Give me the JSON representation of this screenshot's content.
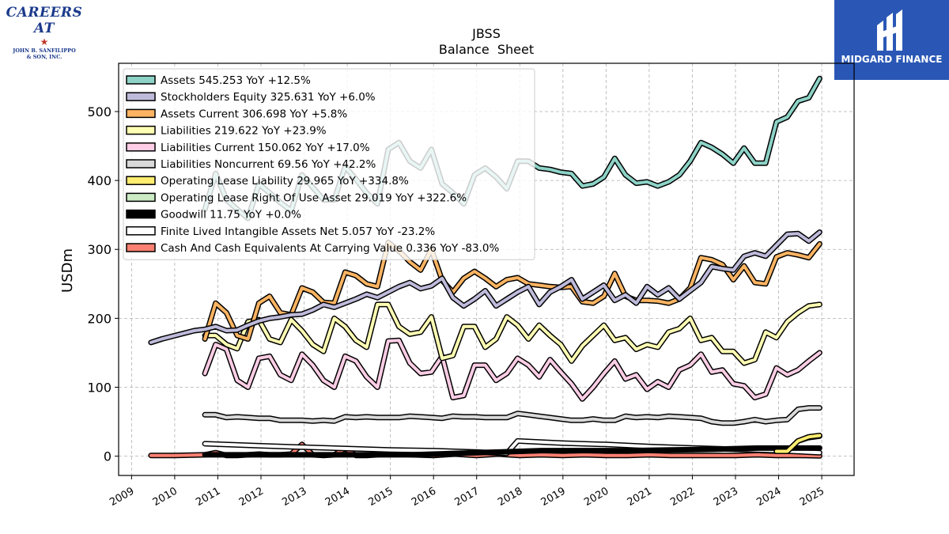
{
  "logos": {
    "careers_title": "CAREERS AT",
    "careers_line1": "JOHN B. SANFILIPPO",
    "careers_line2": "& SON, INC.",
    "midgard_name": "MIDGARD FINANCE"
  },
  "chart_data": {
    "type": "line",
    "title": "JBSS",
    "subtitle": "Balance  Sheet",
    "ylabel": "USDm",
    "xlabel": "",
    "ylim": [
      -28,
      570
    ],
    "xlim": [
      2008.7,
      2025.75
    ],
    "yticks": [
      0,
      100,
      200,
      300,
      400,
      500
    ],
    "xticks": [
      2009,
      2010,
      2011,
      2012,
      2013,
      2014,
      2015,
      2016,
      2017,
      2018,
      2019,
      2020,
      2021,
      2022,
      2023,
      2024,
      2025
    ],
    "grid": true,
    "legend_placement": "top-left",
    "series": [
      {
        "name": "Assets",
        "legend": "Assets  545.253 YoY +12.5%",
        "color": "#8dd3c7",
        "x": [
          2010.7,
          2010.95,
          2011.2,
          2011.45,
          2011.7,
          2011.95,
          2012.2,
          2012.45,
          2012.7,
          2012.95,
          2013.2,
          2013.45,
          2013.7,
          2013.95,
          2014.2,
          2014.45,
          2014.7,
          2014.95,
          2015.2,
          2015.45,
          2015.7,
          2015.95,
          2016.2,
          2016.45,
          2016.7,
          2016.95,
          2017.2,
          2017.45,
          2017.7,
          2017.95,
          2018.2,
          2018.45,
          2018.7,
          2018.95,
          2019.2,
          2019.45,
          2019.7,
          2019.95,
          2020.2,
          2020.45,
          2020.7,
          2020.95,
          2021.2,
          2021.45,
          2021.7,
          2021.95,
          2022.2,
          2022.45,
          2022.7,
          2022.95,
          2023.2,
          2023.45,
          2023.7,
          2023.95,
          2024.2,
          2024.45,
          2024.7,
          2024.95
        ],
        "y": [
          358,
          410,
          372,
          358,
          345,
          395,
          382,
          368,
          356,
          408,
          390,
          372,
          372,
          420,
          402,
          382,
          366,
          445,
          455,
          428,
          418,
          445,
          395,
          382,
          366,
          408,
          418,
          405,
          388,
          428,
          428,
          418,
          416,
          412,
          410,
          392,
          395,
          405,
          432,
          408,
          396,
          398,
          392,
          398,
          408,
          428,
          455,
          448,
          438,
          425,
          447,
          425,
          425,
          485,
          492,
          515,
          520,
          548
        ]
      },
      {
        "name": "Stockholders Equity",
        "legend": "Stockholders Equity  325.631 YoY +6.0%",
        "color": "#bebada",
        "x": [
          2009.45,
          2009.7,
          2009.95,
          2010.2,
          2010.45,
          2010.7,
          2010.95,
          2011.2,
          2011.45,
          2011.7,
          2011.95,
          2012.2,
          2012.45,
          2012.7,
          2012.95,
          2013.2,
          2013.45,
          2013.7,
          2013.95,
          2014.2,
          2014.45,
          2014.7,
          2014.95,
          2015.2,
          2015.45,
          2015.7,
          2015.95,
          2016.2,
          2016.45,
          2016.7,
          2016.95,
          2017.2,
          2017.45,
          2017.7,
          2017.95,
          2018.2,
          2018.45,
          2018.7,
          2018.95,
          2019.2,
          2019.45,
          2019.7,
          2019.95,
          2020.2,
          2020.45,
          2020.7,
          2020.95,
          2021.2,
          2021.45,
          2021.7,
          2021.95,
          2022.2,
          2022.45,
          2022.7,
          2022.95,
          2023.2,
          2023.45,
          2023.7,
          2023.95,
          2024.2,
          2024.45,
          2024.7,
          2024.95
        ],
        "y": [
          165,
          170,
          174,
          178,
          182,
          184,
          188,
          182,
          183,
          190,
          196,
          200,
          202,
          205,
          206,
          212,
          220,
          216,
          222,
          228,
          235,
          230,
          238,
          246,
          252,
          243,
          247,
          258,
          230,
          218,
          228,
          240,
          218,
          228,
          238,
          246,
          220,
          238,
          246,
          256,
          228,
          238,
          248,
          226,
          234,
          222,
          246,
          234,
          244,
          228,
          240,
          252,
          275,
          272,
          270,
          290,
          295,
          290,
          306,
          322,
          323,
          312,
          325
        ]
      },
      {
        "name": "Assets Current",
        "legend": "Assets Current  306.698 YoY +5.8%",
        "color": "#fdb462",
        "x": [
          2010.7,
          2010.95,
          2011.2,
          2011.45,
          2011.7,
          2011.95,
          2012.2,
          2012.45,
          2012.7,
          2012.95,
          2013.2,
          2013.45,
          2013.7,
          2013.95,
          2014.2,
          2014.45,
          2014.7,
          2014.95,
          2015.2,
          2015.45,
          2015.7,
          2015.95,
          2016.2,
          2016.45,
          2016.7,
          2016.95,
          2017.2,
          2017.45,
          2017.7,
          2017.95,
          2018.2,
          2018.45,
          2018.7,
          2018.95,
          2019.2,
          2019.45,
          2019.7,
          2019.95,
          2020.2,
          2020.45,
          2020.7,
          2020.95,
          2021.2,
          2021.45,
          2021.7,
          2021.95,
          2022.2,
          2022.45,
          2022.7,
          2022.95,
          2023.2,
          2023.45,
          2023.7,
          2023.95,
          2024.2,
          2024.45,
          2024.7,
          2024.95
        ],
        "y": [
          170,
          222,
          208,
          175,
          170,
          222,
          232,
          208,
          205,
          244,
          238,
          223,
          222,
          267,
          262,
          250,
          246,
          310,
          298,
          282,
          270,
          300,
          255,
          238,
          258,
          268,
          258,
          246,
          256,
          259,
          250,
          248,
          246,
          245,
          246,
          224,
          222,
          232,
          265,
          232,
          226,
          226,
          225,
          222,
          228,
          244,
          288,
          285,
          278,
          256,
          276,
          252,
          250,
          289,
          295,
          292,
          288,
          308
        ]
      },
      {
        "name": "Liabilities",
        "legend": "Liabilities  219.622 YoY +23.9%",
        "color": "#ffffb3",
        "x": [
          2010.7,
          2010.95,
          2011.2,
          2011.45,
          2011.7,
          2011.95,
          2012.2,
          2012.45,
          2012.7,
          2012.95,
          2013.2,
          2013.45,
          2013.7,
          2013.95,
          2014.2,
          2014.45,
          2014.7,
          2014.95,
          2015.2,
          2015.45,
          2015.7,
          2015.95,
          2016.2,
          2016.45,
          2016.7,
          2016.95,
          2017.2,
          2017.45,
          2017.7,
          2017.95,
          2018.2,
          2018.45,
          2018.7,
          2018.95,
          2019.2,
          2019.45,
          2019.7,
          2019.95,
          2020.2,
          2020.45,
          2020.7,
          2020.95,
          2021.2,
          2021.45,
          2021.7,
          2021.95,
          2022.2,
          2022.45,
          2022.7,
          2022.95,
          2023.2,
          2023.45,
          2023.7,
          2023.95,
          2024.2,
          2024.45,
          2024.7,
          2024.95
        ],
        "y": [
          175,
          175,
          162,
          156,
          195,
          198,
          170,
          165,
          198,
          182,
          162,
          152,
          200,
          188,
          168,
          158,
          220,
          220,
          188,
          177,
          180,
          202,
          142,
          146,
          188,
          188,
          158,
          170,
          202,
          190,
          170,
          190,
          175,
          162,
          138,
          160,
          175,
          190,
          168,
          172,
          155,
          162,
          158,
          180,
          185,
          200,
          168,
          172,
          152,
          152,
          135,
          140,
          180,
          172,
          195,
          208,
          218,
          220
        ]
      },
      {
        "name": "Liabilities Current",
        "legend": "Liabilities Current  150.062 YoY +17.0%",
        "color": "#fccde5",
        "x": [
          2010.7,
          2010.95,
          2011.2,
          2011.45,
          2011.7,
          2011.95,
          2012.2,
          2012.45,
          2012.7,
          2012.95,
          2013.2,
          2013.45,
          2013.7,
          2013.95,
          2014.2,
          2014.45,
          2014.7,
          2014.95,
          2015.2,
          2015.45,
          2015.7,
          2015.95,
          2016.2,
          2016.45,
          2016.7,
          2016.95,
          2017.2,
          2017.45,
          2017.7,
          2017.95,
          2018.2,
          2018.45,
          2018.7,
          2018.95,
          2019.2,
          2019.45,
          2019.7,
          2019.95,
          2020.2,
          2020.45,
          2020.7,
          2020.95,
          2021.2,
          2021.45,
          2021.7,
          2021.95,
          2022.2,
          2022.45,
          2022.7,
          2022.95,
          2023.2,
          2023.45,
          2023.7,
          2023.95,
          2024.2,
          2024.45,
          2024.7,
          2024.95
        ],
        "y": [
          120,
          162,
          155,
          110,
          100,
          142,
          145,
          118,
          110,
          148,
          132,
          110,
          100,
          145,
          138,
          115,
          100,
          167,
          168,
          135,
          120,
          122,
          145,
          85,
          88,
          132,
          132,
          110,
          120,
          142,
          132,
          115,
          140,
          122,
          105,
          83,
          100,
          120,
          138,
          112,
          118,
          97,
          108,
          100,
          125,
          132,
          148,
          122,
          125,
          105,
          102,
          85,
          90,
          128,
          118,
          125,
          138,
          150
        ]
      },
      {
        "name": "Liabilities Noncurrent",
        "legend": "Liabilities Noncurrent  69.56 YoY +42.2%",
        "color": "#d9d9d9",
        "x": [
          2010.7,
          2010.95,
          2011.2,
          2011.45,
          2011.7,
          2011.95,
          2012.2,
          2012.45,
          2012.7,
          2012.95,
          2013.2,
          2013.45,
          2013.7,
          2013.95,
          2014.2,
          2014.45,
          2014.7,
          2014.95,
          2015.2,
          2015.45,
          2015.7,
          2015.95,
          2016.2,
          2016.45,
          2016.7,
          2016.95,
          2017.2,
          2017.45,
          2017.7,
          2017.95,
          2018.2,
          2018.45,
          2018.7,
          2018.95,
          2019.2,
          2019.45,
          2019.7,
          2019.95,
          2020.2,
          2020.45,
          2020.7,
          2020.95,
          2021.2,
          2021.45,
          2021.7,
          2021.95,
          2022.2,
          2022.45,
          2022.7,
          2022.95,
          2023.2,
          2023.45,
          2023.7,
          2023.95,
          2024.2,
          2024.45,
          2024.7,
          2024.95
        ],
        "y": [
          60,
          60,
          56,
          57,
          56,
          55,
          55,
          52,
          52,
          52,
          51,
          52,
          51,
          57,
          56,
          57,
          56,
          56,
          56,
          58,
          57,
          56,
          55,
          58,
          57,
          57,
          56,
          56,
          56,
          62,
          60,
          58,
          56,
          54,
          52,
          52,
          54,
          52,
          52,
          58,
          56,
          57,
          56,
          58,
          57,
          56,
          55,
          50,
          48,
          48,
          50,
          53,
          50,
          52,
          53,
          68,
          70,
          70
        ]
      },
      {
        "name": "Operating Lease Liability",
        "legend": "Operating Lease Liability  29.965 YoY +334.8%",
        "color": "#ffed6f",
        "x": [
          2023.95,
          2024.2,
          2024.45,
          2024.7,
          2024.95
        ],
        "y": [
          7,
          7,
          22,
          28,
          30
        ]
      },
      {
        "name": "Operating Lease Right Of Use Asset",
        "legend": "Operating Lease Right Of Use Asset  29.019 YoY +322.6%",
        "color": "#ccebc5",
        "x": [
          2023.95,
          2024.2,
          2024.45,
          2024.7,
          2024.95
        ],
        "y": [
          7,
          7,
          22,
          27,
          29
        ]
      },
      {
        "name": "Goodwill",
        "legend": "Goodwill  11.75 YoY +0.0%",
        "color": "#000000",
        "x": [
          2010.7,
          2011.5,
          2012.5,
          2013.5,
          2014.5,
          2015.5,
          2016.5,
          2017.5,
          2018.5,
          2019.5,
          2020.5,
          2021.5,
          2022.5,
          2023.5,
          2024.5,
          2024.95
        ],
        "y": [
          2,
          2,
          2,
          2,
          2,
          2,
          4,
          6,
          8,
          8,
          8,
          9,
          10,
          11.75,
          11.75,
          11.75
        ]
      },
      {
        "name": "Finite Lived Intangible Assets Net",
        "legend": "Finite Lived Intangible Assets Net  5.057 YoY -23.2%",
        "color": "#ffffff",
        "x": [
          2010.7,
          2012,
          2013,
          2014,
          2015,
          2016,
          2017,
          2017.7,
          2017.95,
          2019,
          2020,
          2021,
          2022,
          2023,
          2023.95,
          2024.95
        ],
        "y": [
          18,
          15,
          13,
          11,
          9,
          8,
          6,
          4,
          22,
          19,
          17,
          14,
          12,
          10,
          8,
          5
        ]
      },
      {
        "name": "Cash And Cash Equivalents At Carrying Value",
        "legend": "Cash And Cash Equivalents At Carrying Value  0.336 YoY -83.0%",
        "color": "#fb8072",
        "x": [
          2009.45,
          2010,
          2010.7,
          2010.95,
          2011.2,
          2011.45,
          2011.7,
          2011.95,
          2012.2,
          2012.45,
          2012.7,
          2012.95,
          2013.2,
          2013.45,
          2013.7,
          2013.95,
          2014.2,
          2014.45,
          2014.7,
          2014.95,
          2015.5,
          2016,
          2016.5,
          2017,
          2017.5,
          2018,
          2018.5,
          2019,
          2019.5,
          2020,
          2020.5,
          2021,
          2021.5,
          2022,
          2022.5,
          2023,
          2023.5,
          2023.95,
          2024.5,
          2024.95
        ],
        "y": [
          1,
          1,
          2,
          5,
          1,
          1,
          2,
          3,
          2,
          2,
          3,
          17,
          2,
          1,
          2,
          11,
          1,
          1,
          2,
          5,
          2,
          1,
          3,
          1,
          3,
          1,
          2,
          1,
          2,
          1,
          1,
          2,
          1,
          1,
          1,
          1,
          2,
          1,
          1,
          0.3
        ]
      }
    ]
  }
}
